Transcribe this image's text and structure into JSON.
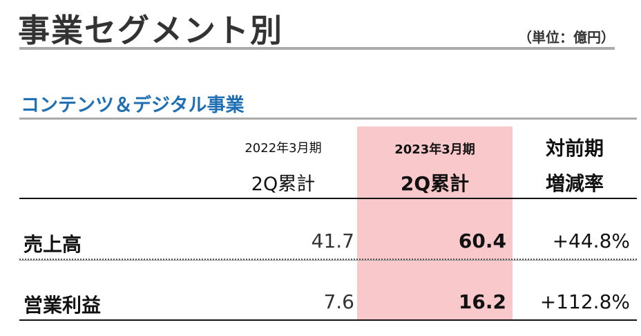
{
  "header": {
    "title": "事業セグメント別",
    "unit": "（単位：億円）"
  },
  "section": "コンテンツ＆デジタル事業",
  "table": {
    "columns": [
      [
        "2022年3月期",
        "2Q累計"
      ],
      [
        "2023年3月期",
        "2Q累計"
      ],
      [
        "対前期",
        "増減率"
      ]
    ],
    "rows": [
      [
        "売上高",
        "41.7",
        "60.4",
        "+44.8%"
      ],
      [
        "営業利益",
        "7.6",
        "16.2",
        "+112.8%"
      ]
    ]
  }
}
